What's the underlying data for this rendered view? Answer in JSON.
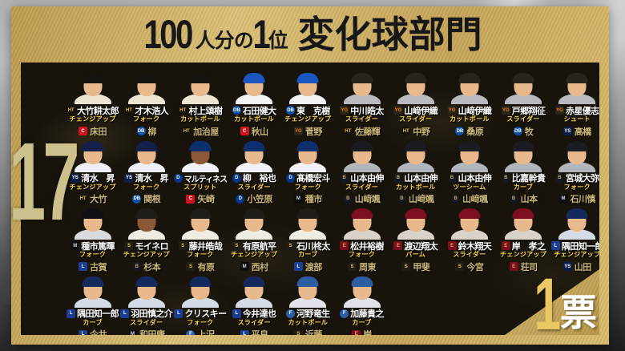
{
  "title": {
    "num1": "100",
    "small1": "人分の",
    "num2": "1",
    "small2": "位",
    "category": "変化球部門"
  },
  "rank_number": "17",
  "vote_badge": {
    "number": "1",
    "label": "票"
  },
  "colors": {
    "gold_light": "#dcc177",
    "gold_dark": "#bf9c4e",
    "content_bg": "#18140c",
    "player_name": "#ffffff",
    "pitch_text": "#ffd84a",
    "voter_text": "#c9b679",
    "rank_text": "#ccc08c",
    "vote_number": "#e9c763"
  },
  "teams": {
    "HT": {
      "label": "HT",
      "bg": "#14120e",
      "fg": "#e6b93f",
      "shape": "circle",
      "cap": "#17140f",
      "jersey": "#ece5d2"
    },
    "DB": {
      "label": "DB",
      "bg": "#0b50a8",
      "fg": "#ffffff",
      "shape": "circle",
      "cap": "#1a55c0",
      "jersey": "#f1f3f6"
    },
    "C": {
      "label": "C",
      "bg": "#cf1420",
      "fg": "#ffffff",
      "shape": "square",
      "cap": "#c51220",
      "jersey": "#eceaea"
    },
    "YG": {
      "label": "YG",
      "bg": "#2b241c",
      "fg": "#f08300",
      "shape": "square",
      "cap": "#29241e",
      "jersey": "#b9babf"
    },
    "YS": {
      "label": "YS",
      "bg": "#0e1e4a",
      "fg": "#ffffff",
      "shape": "square",
      "cap": "#13204a",
      "jersey": "#edeff3"
    },
    "D": {
      "label": "D",
      "bg": "#04368c",
      "fg": "#ffffff",
      "shape": "circle",
      "cap": "#0d2f6e",
      "jersey": "#f0f2f5"
    },
    "B": {
      "label": "B",
      "bg": "#151826",
      "fg": "#c9a64e",
      "shape": "circle",
      "cap": "#1b1b22",
      "jersey": "#b2b5bb"
    },
    "M": {
      "label": "M",
      "bg": "#0d0d12",
      "fg": "#d8d9dd",
      "shape": "square",
      "cap": "#0f0f16",
      "jersey": "#d8dadd"
    },
    "S": {
      "label": "S",
      "bg": "#1f1d18",
      "fg": "#f3c432",
      "shape": "square",
      "cap": "#201d18",
      "jersey": "#efece1"
    },
    "E": {
      "label": "E",
      "bg": "#7c0e1e",
      "fg": "#cfa763",
      "shape": "square",
      "cap": "#7c1020",
      "jersey": "#d9d2c8"
    },
    "L": {
      "label": "L",
      "bg": "#1b3f94",
      "fg": "#ffffff",
      "shape": "square",
      "cap": "#16295c",
      "jersey": "#d4dae6"
    },
    "F": {
      "label": "F",
      "bg": "#2c5fa6",
      "fg": "#ffffff",
      "shape": "circle",
      "cap": "#2c5ca2",
      "jersey": "#dfe3e9"
    }
  },
  "skin": {
    "default": "#e9b98e",
    "dark": "#8a5a38"
  },
  "rows": [
    [
      {
        "team": "HT",
        "name": "大竹耕太郎",
        "pitch": "チェンジアップ",
        "voter_team": "C",
        "voter": "床田"
      },
      {
        "team": "HT",
        "name": "才木浩人",
        "pitch": "フォーク",
        "voter_team": "DB",
        "voter": "柳"
      },
      {
        "team": "HT",
        "name": "村上頌樹",
        "pitch": "カットボール",
        "voter_team": "HT",
        "voter": "加治屋"
      },
      {
        "team": "DB",
        "name": "石田健大",
        "pitch": "カットボール",
        "voter_team": "C",
        "voter": "秋山"
      },
      {
        "team": "DB",
        "name": "東　克樹",
        "pitch": "チェンジアップ",
        "voter_team": "YG",
        "voter": "菅野"
      },
      {
        "team": "YG",
        "name": "中川皓太",
        "pitch": "スライダー",
        "voter_team": "HT",
        "voter": "佐藤輝"
      },
      {
        "team": "YG",
        "name": "山﨑伊織",
        "pitch": "スライダー",
        "voter_team": "HT",
        "voter": "中野"
      },
      {
        "team": "YG",
        "name": "山﨑伊織",
        "pitch": "カットボール",
        "voter_team": "DB",
        "voter": "桑原"
      },
      {
        "team": "YG",
        "name": "戸郷翔征",
        "pitch": "スライダー",
        "voter_team": "DB",
        "voter": "牧"
      },
      {
        "team": "YG",
        "name": "赤星優志",
        "pitch": "シュート",
        "voter_team": "YS",
        "voter": "高橋"
      }
    ],
    [
      {
        "team": "YS",
        "name": "清水　昇",
        "pitch": "チェンジアップ",
        "voter_team": "HT",
        "voter": "大竹"
      },
      {
        "team": "YS",
        "name": "清水　昇",
        "pitch": "フォーク",
        "voter_team": "DB",
        "voter": "関根"
      },
      {
        "team": "D",
        "name": "マルティネス",
        "pitch": "スプリット",
        "voter_team": "C",
        "voter": "矢崎",
        "skin": "dark"
      },
      {
        "team": "D",
        "name": "柳　裕也",
        "pitch": "スライダー",
        "voter_team": "D",
        "voter": "小笠原"
      },
      {
        "team": "D",
        "name": "髙橋宏斗",
        "pitch": "フォーク",
        "voter_team": "M",
        "voter": "種市"
      },
      {
        "team": "B",
        "name": "山本由伸",
        "pitch": "スライダー",
        "voter_team": "B",
        "voter": "山﨑颯"
      },
      {
        "team": "B",
        "name": "山本由伸",
        "pitch": "カットボール",
        "voter_team": "B",
        "voter": "山﨑颯"
      },
      {
        "team": "B",
        "name": "山本由伸",
        "pitch": "ツーシーム",
        "voter_team": "B",
        "voter": "山﨑颯"
      },
      {
        "team": "B",
        "name": "比嘉幹貴",
        "pitch": "カーブ",
        "voter_team": "B",
        "voter": "山本"
      },
      {
        "team": "B",
        "name": "宮城大弥",
        "pitch": "フォーク",
        "voter_team": "M",
        "voter": "石川慎"
      }
    ],
    [
      {
        "team": "M",
        "name": "種市篤暉",
        "pitch": "フォーク",
        "voter_team": "L",
        "voter": "古賀"
      },
      {
        "team": "S",
        "name": "モイネロ",
        "pitch": "チェンジアップ",
        "voter_team": "B",
        "voter": "杉本",
        "skin": "dark"
      },
      {
        "team": "S",
        "name": "藤井皓哉",
        "pitch": "フォーク",
        "voter_team": "S",
        "voter": "有原"
      },
      {
        "team": "S",
        "name": "有原航平",
        "pitch": "チェンジアップ",
        "voter_team": "M",
        "voter": "西村"
      },
      {
        "team": "S",
        "name": "石川柊太",
        "pitch": "カーブ",
        "voter_team": "L",
        "voter": "渡部"
      },
      {
        "team": "E",
        "name": "松井裕樹",
        "pitch": "フォーク",
        "voter_team": "S",
        "voter": "周東"
      },
      {
        "team": "E",
        "name": "渡辺翔太",
        "pitch": "パーム",
        "voter_team": "S",
        "voter": "甲斐"
      },
      {
        "team": "E",
        "name": "鈴木翔天",
        "pitch": "スライダー",
        "voter_team": "S",
        "voter": "今宮"
      },
      {
        "team": "E",
        "name": "岸　孝之",
        "pitch": "チェンジアップ",
        "voter_team": "E",
        "voter": "荘司"
      },
      {
        "team": "L",
        "name": "隅田知一郎",
        "pitch": "チェンジアップ",
        "voter_team": "YS",
        "voter": "山田"
      }
    ],
    [
      {
        "team": "L",
        "name": "隅田知一郎",
        "pitch": "カーブ",
        "voter_team": "L",
        "voter": "今井"
      },
      {
        "team": "L",
        "name": "羽田慎之介",
        "pitch": "スライダー",
        "voter_team": "M",
        "voter": "和田康"
      },
      {
        "team": "L",
        "name": "クリスキー",
        "pitch": "フォーク",
        "voter_team": "F",
        "voter": "上沢"
      },
      {
        "team": "L",
        "name": "今井達也",
        "pitch": "スライダー",
        "voter_team": "L",
        "voter": "平良"
      },
      {
        "team": "F",
        "name": "河野竜生",
        "pitch": "カットボール",
        "voter_team": "S",
        "voter": "近藤"
      },
      {
        "team": "F",
        "name": "加藤貴之",
        "pitch": "カーブ",
        "voter_team": "E",
        "voter": "岸"
      }
    ]
  ]
}
